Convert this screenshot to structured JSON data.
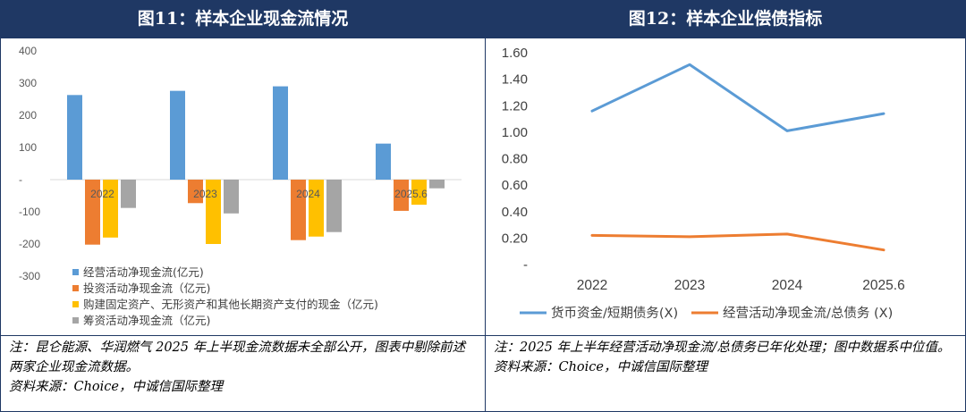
{
  "colors": {
    "header_bg": "#1f3864",
    "blue": "#5b9bd5",
    "orange": "#ed7d31",
    "yellow": "#ffc000",
    "gray": "#a5a5a5"
  },
  "left": {
    "title": "图11：样本企业现金流情况",
    "notes": [
      "注：昆仑能源、华润燃气 2025 年上半现金流数据未全部公开，图表中剔除前述两家企业现金流数据。",
      "资料来源：Choice，中诚信国际整理"
    ]
  },
  "right": {
    "title": "图12：样本企业偿债指标",
    "notes": [
      "注：2025 年上半年经营活动净现金流/总债务已年化处理；图中数据系中位值。",
      "资料来源：Choice，中诚信国际整理"
    ]
  },
  "chart_data": [
    {
      "type": "bar",
      "title": "图11：样本企业现金流情况",
      "categories": [
        "2022",
        "2023",
        "2024",
        "2025.6"
      ],
      "yticks": [
        "400",
        "300",
        "200",
        "100",
        "-",
        "-100",
        "-200",
        "-300"
      ],
      "ylim": [
        -300,
        400
      ],
      "legend_position": "bottom-left",
      "series": [
        {
          "name": "经营活动净现金流(亿元)",
          "color": "#5b9bd5",
          "values": [
            263,
            276,
            290,
            112
          ]
        },
        {
          "name": "投资活动净现金流（亿元)",
          "color": "#ed7d31",
          "values": [
            -202,
            -73,
            -188,
            -97
          ]
        },
        {
          "name": "购建固定资产、无形资产和其他长期资产支付的现金（亿元)",
          "color": "#ffc000",
          "values": [
            -180,
            -200,
            -177,
            -78
          ]
        },
        {
          "name": "筹资活动净现金流（亿元)",
          "color": "#a5a5a5",
          "values": [
            -88,
            -105,
            -163,
            -27
          ]
        }
      ]
    },
    {
      "type": "line",
      "title": "图12：样本企业偿债指标",
      "categories": [
        "2022",
        "2023",
        "2024",
        "2025.6"
      ],
      "yticks": [
        "1.60",
        "1.40",
        "1.20",
        "1.00",
        "0.80",
        "0.60",
        "0.40",
        "0.20",
        "-"
      ],
      "ylim": [
        0,
        1.6
      ],
      "legend_position": "bottom",
      "series": [
        {
          "name": "货币资金/短期债务(X)",
          "color": "#5b9bd5",
          "values": [
            1.16,
            1.51,
            1.01,
            1.14
          ]
        },
        {
          "name": "经营活动净现金流/总债务 (X)",
          "color": "#ed7d31",
          "values": [
            0.22,
            0.21,
            0.23,
            0.11
          ]
        }
      ]
    }
  ]
}
